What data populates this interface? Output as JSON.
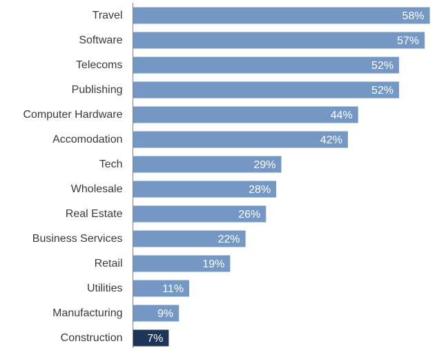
{
  "chart_data": {
    "type": "bar",
    "orientation": "horizontal",
    "categories": [
      "Travel",
      "Software",
      "Telecoms",
      "Publishing",
      "Computer Hardware",
      "Accomodation",
      "Tech",
      "Wholesale",
      "Real Estate",
      "Business Services",
      "Retail",
      "Utilities",
      "Manufacturing",
      "Construction"
    ],
    "values": [
      58,
      57,
      52,
      52,
      44,
      42,
      29,
      28,
      26,
      22,
      19,
      11,
      9,
      7
    ],
    "value_labels": [
      "58%",
      "57%",
      "52%",
      "52%",
      "44%",
      "42%",
      "29%",
      "28%",
      "26%",
      "22%",
      "19%",
      "11%",
      "9%",
      "7%"
    ],
    "unit": "%",
    "xlim": [
      0,
      59
    ],
    "highlighted_category": "Construction",
    "colors": {
      "bar": "#7497c4",
      "highlight": "#1f3558",
      "axis": "#7f7f7f",
      "label": "#3a3a3a",
      "value_text": "#ffffff"
    },
    "grid": false,
    "legend": "none"
  }
}
